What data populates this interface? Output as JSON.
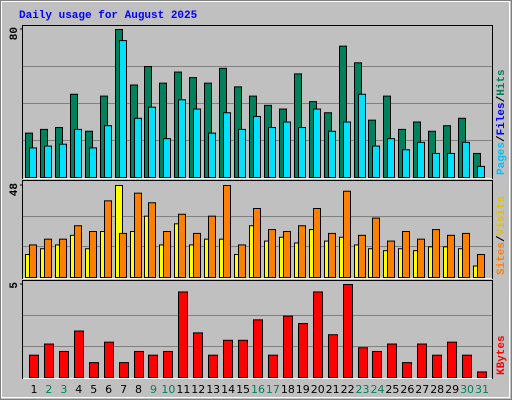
{
  "chart_data": [
    {
      "type": "bar",
      "title": "Daily usage for August 2025",
      "ylim": [
        0,
        80
      ],
      "yticks": [
        80
      ],
      "legend": [
        {
          "text": "Pages",
          "color": "#00c0ff"
        },
        {
          "text": "/",
          "color": "#000000"
        },
        {
          "text": "Files",
          "color": "#0000ff"
        },
        {
          "text": "/",
          "color": "#000000"
        },
        {
          "text": "Hits",
          "color": "#00805c"
        }
      ],
      "series": [
        {
          "color": "#00805c",
          "values": [
            24,
            26,
            27,
            45,
            25,
            44,
            80,
            50,
            60,
            51,
            57,
            54,
            51,
            59,
            49,
            44,
            39,
            37,
            56,
            41,
            35,
            71,
            62,
            31,
            44,
            26,
            30,
            25,
            28,
            32,
            13
          ]
        },
        {
          "color": "#00e0ff",
          "values": [
            16,
            17,
            18,
            26,
            16,
            28,
            74,
            32,
            38,
            21,
            42,
            37,
            24,
            35,
            26,
            33,
            27,
            30,
            27,
            37,
            25,
            30,
            45,
            17,
            21,
            15,
            19,
            13,
            13,
            19,
            6
          ]
        }
      ]
    },
    {
      "type": "bar",
      "ylim": [
        0,
        48
      ],
      "yticks": [
        48
      ],
      "legend": [
        {
          "text": "Sites",
          "color": "#ff8000"
        },
        {
          "text": "/",
          "color": "#000000"
        },
        {
          "text": "Visits",
          "color": "#e0c000"
        }
      ],
      "series": [
        {
          "color": "#ffff00",
          "values": [
            12,
            15,
            17,
            22,
            15,
            24,
            48,
            24,
            32,
            17,
            28,
            17,
            20,
            20,
            12,
            27,
            19,
            21,
            18,
            25,
            19,
            21,
            17,
            15,
            14,
            15,
            14,
            16,
            16,
            15,
            6
          ]
        },
        {
          "color": "#ff8000",
          "values": [
            17,
            20,
            20,
            27,
            24,
            40,
            23,
            44,
            39,
            24,
            33,
            23,
            32,
            48,
            17,
            36,
            25,
            24,
            27,
            36,
            23,
            45,
            22,
            31,
            19,
            24,
            20,
            25,
            22,
            23,
            12
          ]
        }
      ]
    },
    {
      "type": "bar",
      "ylim": [
        0,
        5
      ],
      "yticks": [
        5
      ],
      "legend": [
        {
          "text": "KBytes",
          "color": "#ff0000"
        }
      ],
      "categories": [
        "1",
        "2",
        "3",
        "4",
        "5",
        "6",
        "7",
        "8",
        "9",
        "10",
        "11",
        "12",
        "13",
        "14",
        "15",
        "16",
        "17",
        "18",
        "19",
        "20",
        "21",
        "22",
        "23",
        "24",
        "25",
        "26",
        "27",
        "28",
        "29",
        "30",
        "31"
      ],
      "category_colors": [
        "#000000",
        "#00805c",
        "#00805c",
        "#000000",
        "#000000",
        "#000000",
        "#000000",
        "#000000",
        "#00805c",
        "#00805c",
        "#000000",
        "#000000",
        "#000000",
        "#000000",
        "#000000",
        "#00805c",
        "#00805c",
        "#000000",
        "#000000",
        "#000000",
        "#000000",
        "#000000",
        "#00805c",
        "#00805c",
        "#000000",
        "#000000",
        "#000000",
        "#000000",
        "#000000",
        "#00805c",
        "#00805c"
      ],
      "series": [
        {
          "color": "#ff0000",
          "values": [
            1.2,
            1.8,
            1.4,
            2.5,
            0.8,
            1.9,
            0.8,
            1.4,
            1.2,
            1.4,
            4.6,
            2.4,
            1.2,
            2.0,
            2.0,
            3.1,
            1.2,
            3.3,
            2.9,
            4.6,
            2.3,
            5.0,
            1.6,
            1.4,
            1.8,
            0.8,
            1.8,
            1.2,
            1.9,
            1.2,
            0.3
          ]
        }
      ]
    }
  ]
}
